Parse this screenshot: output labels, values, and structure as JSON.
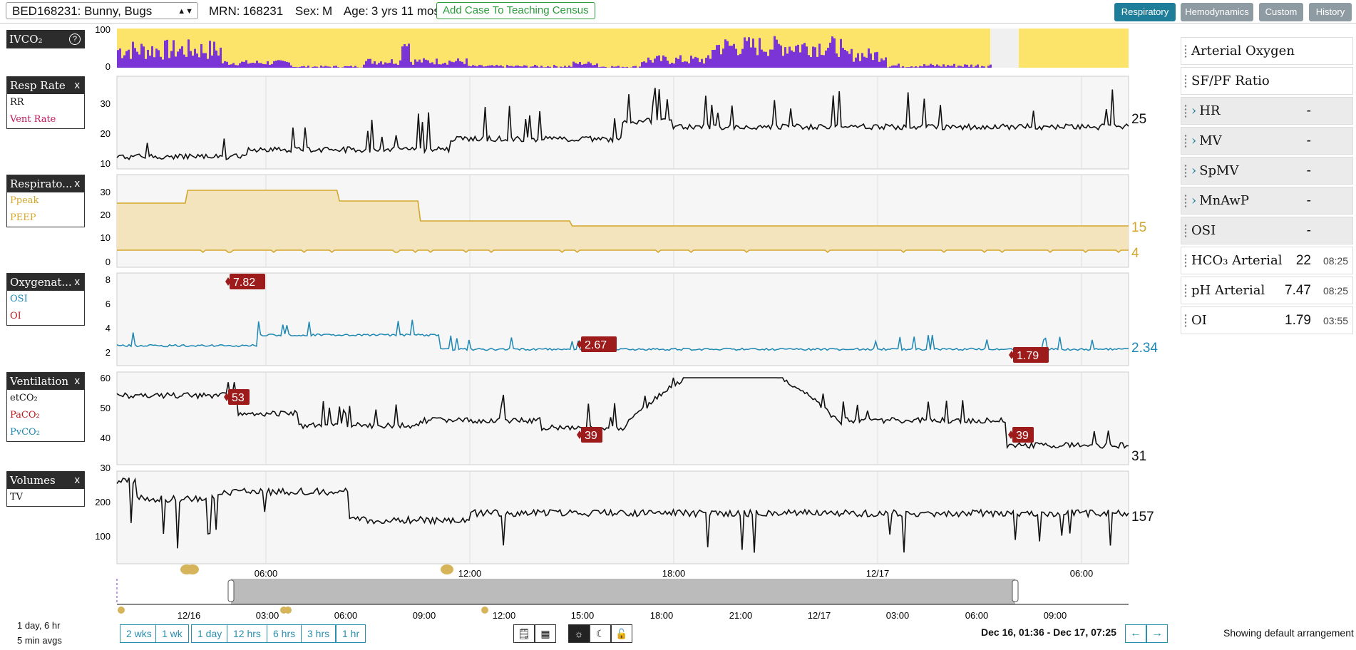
{
  "header": {
    "patient_select": "BED168231: Bunny, Bugs",
    "mrn_label": "MRN:",
    "mrn": "168231",
    "sex_label": "Sex:",
    "sex": "M",
    "age_label": "Age:",
    "age": "3 yrs 11 mos",
    "add_case_button": "Add Case To Teaching Census",
    "tabs": [
      "Respiratory",
      "Hemodynamics",
      "Custom",
      "History"
    ],
    "active_tab": "Respiratory"
  },
  "ivco2": {
    "label": "IVCO₂",
    "help_icon": "question-circle-icon",
    "y_ticks": [
      "100",
      "0"
    ],
    "colors": {
      "background": "#fce46a",
      "bars": "#7b35d6",
      "gap": "#f0f0f0"
    }
  },
  "panels": [
    {
      "title": "Resp Rate",
      "close": "x",
      "items": [
        {
          "label": "RR",
          "color": "#111111"
        },
        {
          "label": "Vent Rate",
          "color": "#c2185b"
        }
      ],
      "y_ticks": [
        "30",
        "20",
        "10"
      ],
      "current_values": [
        {
          "text": "25",
          "color": "#111111"
        }
      ]
    },
    {
      "title": "Respirato...",
      "close": "x",
      "items": [
        {
          "label": "Ppeak",
          "color": "#d4a72c"
        },
        {
          "label": "PEEP",
          "color": "#d4a72c"
        }
      ],
      "y_ticks": [
        "30",
        "20",
        "10",
        "0"
      ],
      "current_values": [
        {
          "text": "15",
          "color": "#d4a72c"
        },
        {
          "text": "4",
          "color": "#d4a72c"
        }
      ]
    },
    {
      "title": "Oxygenat...",
      "close": "x",
      "items": [
        {
          "label": "OSI",
          "color": "#1e88b4"
        },
        {
          "label": "OI",
          "color": "#b71c1c"
        }
      ],
      "y_ticks": [
        "8",
        "6",
        "4",
        "2"
      ],
      "current_values": [
        {
          "text": "2.34",
          "color": "#1e88b4"
        }
      ],
      "markers": [
        "7.82",
        "2.67",
        "1.79"
      ]
    },
    {
      "title": "Ventilation",
      "close": "x",
      "items": [
        {
          "label": "etCO₂",
          "color": "#111111"
        },
        {
          "label": "PaCO₂",
          "color": "#b71c1c"
        },
        {
          "label": "PvCO₂",
          "color": "#1e88b4"
        }
      ],
      "y_ticks": [
        "60",
        "50",
        "40",
        "30"
      ],
      "current_values": [
        {
          "text": "31",
          "color": "#111111"
        }
      ],
      "markers": [
        "53",
        "39",
        "39"
      ]
    },
    {
      "title": "Volumes",
      "close": "x",
      "items": [
        {
          "label": "TV",
          "color": "#111111"
        }
      ],
      "y_ticks": [
        "200",
        "100"
      ],
      "current_values": [
        {
          "text": "157",
          "color": "#111111"
        }
      ]
    }
  ],
  "time_axis": {
    "main_ticks": [
      "06:00",
      "12:00",
      "18:00",
      "12/17",
      "06:00"
    ],
    "overview_ticks": [
      "12/16",
      "03:00",
      "06:00",
      "09:00",
      "12:00",
      "15:00",
      "18:00",
      "21:00",
      "12/17",
      "03:00",
      "06:00",
      "09:00"
    ]
  },
  "sidebar": {
    "items": [
      {
        "name": "Arterial Oxygen",
        "value": "",
        "time": "",
        "grey": false,
        "chevron": false
      },
      {
        "name": "SF/PF Ratio",
        "value": "",
        "time": "",
        "grey": false,
        "chevron": false
      },
      {
        "name": "HR",
        "value": "-",
        "time": "",
        "grey": true,
        "chevron": true
      },
      {
        "name": "MV",
        "value": "-",
        "time": "",
        "grey": true,
        "chevron": true
      },
      {
        "name": "SpMV",
        "value": "-",
        "time": "",
        "grey": true,
        "chevron": true
      },
      {
        "name": "MnAwP",
        "value": "-",
        "time": "",
        "grey": true,
        "chevron": true
      },
      {
        "name": "OSI",
        "value": "-",
        "time": "",
        "grey": true,
        "chevron": false
      },
      {
        "name": "HCO₃ Arterial",
        "value": "22",
        "time": "08:25",
        "grey": false,
        "chevron": false
      },
      {
        "name": "pH Arterial",
        "value": "7.47",
        "time": "08:25",
        "grey": false,
        "chevron": false
      },
      {
        "name": "OI",
        "value": "1.79",
        "time": "03:55",
        "grey": false,
        "chevron": false
      }
    ]
  },
  "footer": {
    "window_span": "1 day, 6 hr",
    "averaging": "5 min avgs",
    "range_buttons": [
      "2 wks",
      "1 wk",
      "1 day",
      "12 hrs",
      "6 hrs",
      "3 hrs",
      "1 hr"
    ],
    "icon_buttons": [
      "note-icon",
      "calculator-icon",
      "sun-icon",
      "moon-icon",
      "unlock-icon"
    ],
    "date_range": "Dec 16, 01:36 - Dec 17, 07:25",
    "prev_icon": "arrow-left-icon",
    "next_icon": "arrow-right-icon",
    "arrangement": "Showing default arrangement"
  }
}
